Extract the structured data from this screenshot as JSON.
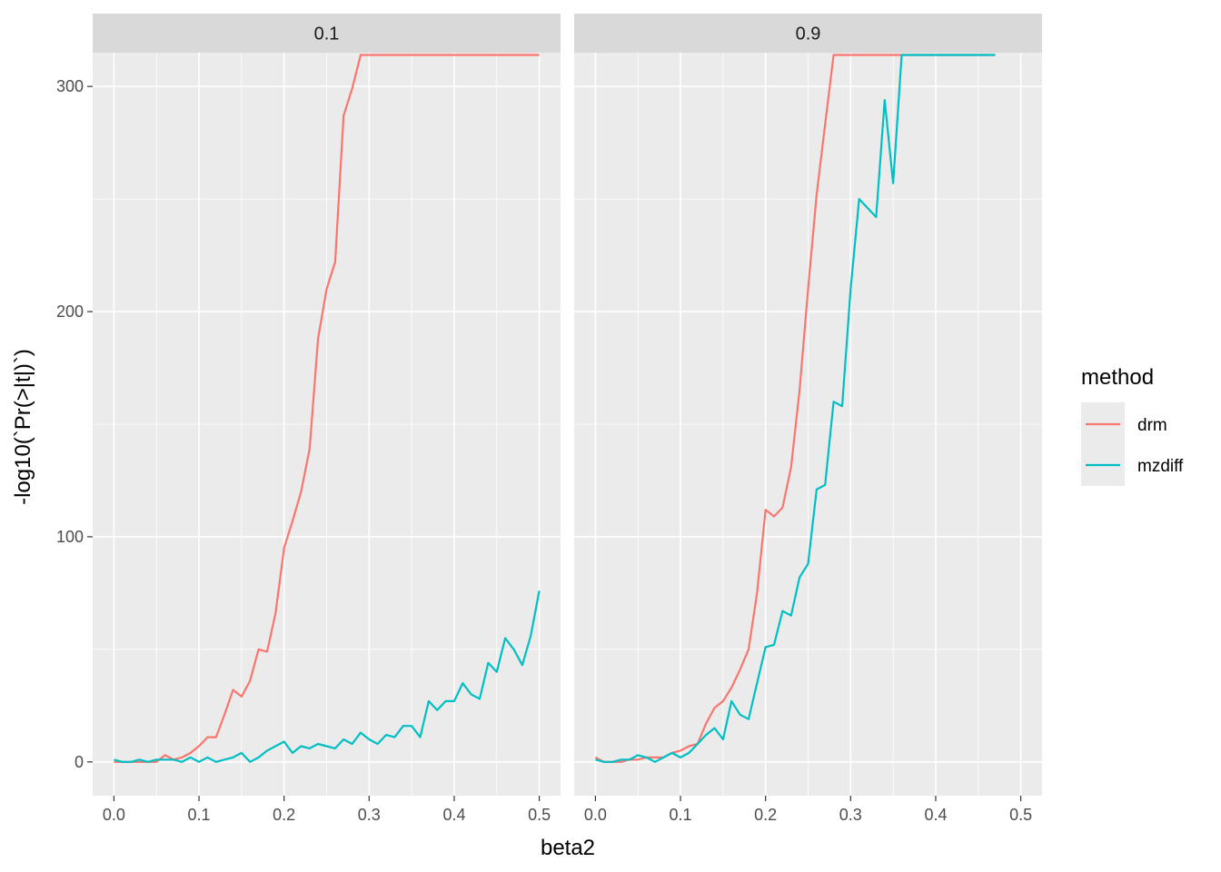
{
  "chart_data": {
    "type": "line",
    "xlabel": "beta2",
    "ylabel": "-log10(`Pr(>|t|)`)",
    "xlim": [
      -0.025,
      0.525
    ],
    "ylim": [
      -15,
      315
    ],
    "x_ticks": [
      0.0,
      0.1,
      0.2,
      0.3,
      0.4,
      0.5
    ],
    "x_tick_labels": [
      "0.0",
      "0.1",
      "0.2",
      "0.3",
      "0.4",
      "0.5"
    ],
    "y_ticks": [
      0,
      100,
      200,
      300
    ],
    "y_tick_labels": [
      "0",
      "100",
      "200",
      "300"
    ],
    "grid": true,
    "legend": {
      "title": "method",
      "position": "right",
      "entries": [
        {
          "name": "drm",
          "color": "#F8766D"
        },
        {
          "name": "mzdiff",
          "color": "#00BFC4"
        }
      ]
    },
    "panels": [
      {
        "label": "0.1",
        "series": [
          {
            "name": "drm",
            "color": "#F8766D",
            "x": [
              0.0,
              0.01,
              0.02,
              0.03,
              0.04,
              0.05,
              0.06,
              0.07,
              0.08,
              0.09,
              0.1,
              0.11,
              0.12,
              0.13,
              0.14,
              0.15,
              0.16,
              0.17,
              0.18,
              0.19,
              0.2,
              0.21,
              0.22,
              0.23,
              0.24,
              0.25,
              0.26,
              0.27,
              0.28,
              0.29,
              0.3,
              0.35,
              0.4,
              0.45,
              0.5
            ],
            "y": [
              0,
              0,
              0,
              0,
              0,
              0,
              3,
              1,
              2,
              4,
              7,
              11,
              11,
              21,
              32,
              29,
              36,
              50,
              49,
              66,
              95,
              107,
              120,
              139,
              188,
              210,
              222,
              287,
              299,
              314,
              314,
              314,
              314,
              314,
              314
            ]
          },
          {
            "name": "mzdiff",
            "color": "#00BFC4",
            "x": [
              0.0,
              0.01,
              0.02,
              0.03,
              0.04,
              0.05,
              0.06,
              0.07,
              0.08,
              0.09,
              0.1,
              0.11,
              0.12,
              0.13,
              0.14,
              0.15,
              0.16,
              0.17,
              0.18,
              0.19,
              0.2,
              0.21,
              0.22,
              0.23,
              0.24,
              0.25,
              0.26,
              0.27,
              0.28,
              0.29,
              0.3,
              0.31,
              0.32,
              0.33,
              0.34,
              0.35,
              0.36,
              0.37,
              0.38,
              0.39,
              0.4,
              0.41,
              0.42,
              0.43,
              0.44,
              0.45,
              0.46,
              0.47,
              0.48,
              0.49,
              0.5
            ],
            "y": [
              1,
              0,
              0,
              1,
              0,
              1,
              1,
              1,
              0,
              2,
              0,
              2,
              0,
              1,
              2,
              4,
              0,
              2,
              5,
              7,
              9,
              4,
              7,
              6,
              8,
              7,
              6,
              10,
              8,
              13,
              10,
              8,
              12,
              11,
              16,
              16,
              11,
              27,
              23,
              27,
              27,
              35,
              30,
              28,
              44,
              40,
              55,
              50,
              43,
              56,
              76
            ]
          }
        ]
      },
      {
        "label": "0.9",
        "series": [
          {
            "name": "drm",
            "color": "#F8766D",
            "x": [
              0.0,
              0.01,
              0.02,
              0.03,
              0.04,
              0.05,
              0.06,
              0.07,
              0.08,
              0.09,
              0.1,
              0.11,
              0.12,
              0.13,
              0.14,
              0.15,
              0.16,
              0.17,
              0.18,
              0.19,
              0.2,
              0.21,
              0.22,
              0.23,
              0.24,
              0.25,
              0.26,
              0.27,
              0.28,
              0.3,
              0.35,
              0.4,
              0.45,
              0.47
            ],
            "y": [
              2,
              0,
              0,
              0,
              1,
              1,
              2,
              2,
              2,
              4,
              5,
              7,
              8,
              17,
              24,
              27,
              33,
              41,
              50,
              75,
              112,
              109,
              113,
              131,
              165,
              210,
              252,
              283,
              314,
              314,
              314,
              314,
              314,
              314
            ]
          },
          {
            "name": "mzdiff",
            "color": "#00BFC4",
            "x": [
              0.0,
              0.01,
              0.02,
              0.03,
              0.04,
              0.05,
              0.06,
              0.07,
              0.08,
              0.09,
              0.1,
              0.11,
              0.12,
              0.13,
              0.14,
              0.15,
              0.16,
              0.17,
              0.18,
              0.19,
              0.2,
              0.21,
              0.22,
              0.23,
              0.24,
              0.25,
              0.26,
              0.27,
              0.28,
              0.29,
              0.3,
              0.31,
              0.32,
              0.33,
              0.34,
              0.35,
              0.36,
              0.4,
              0.45,
              0.47
            ],
            "y": [
              1,
              0,
              0,
              1,
              1,
              3,
              2,
              0,
              2,
              4,
              2,
              4,
              8,
              12,
              15,
              10,
              27,
              21,
              19,
              35,
              51,
              52,
              67,
              65,
              82,
              88,
              121,
              123,
              160,
              158,
              210,
              250,
              246,
              242,
              294,
              257,
              314,
              314,
              314,
              314
            ]
          }
        ]
      }
    ]
  }
}
